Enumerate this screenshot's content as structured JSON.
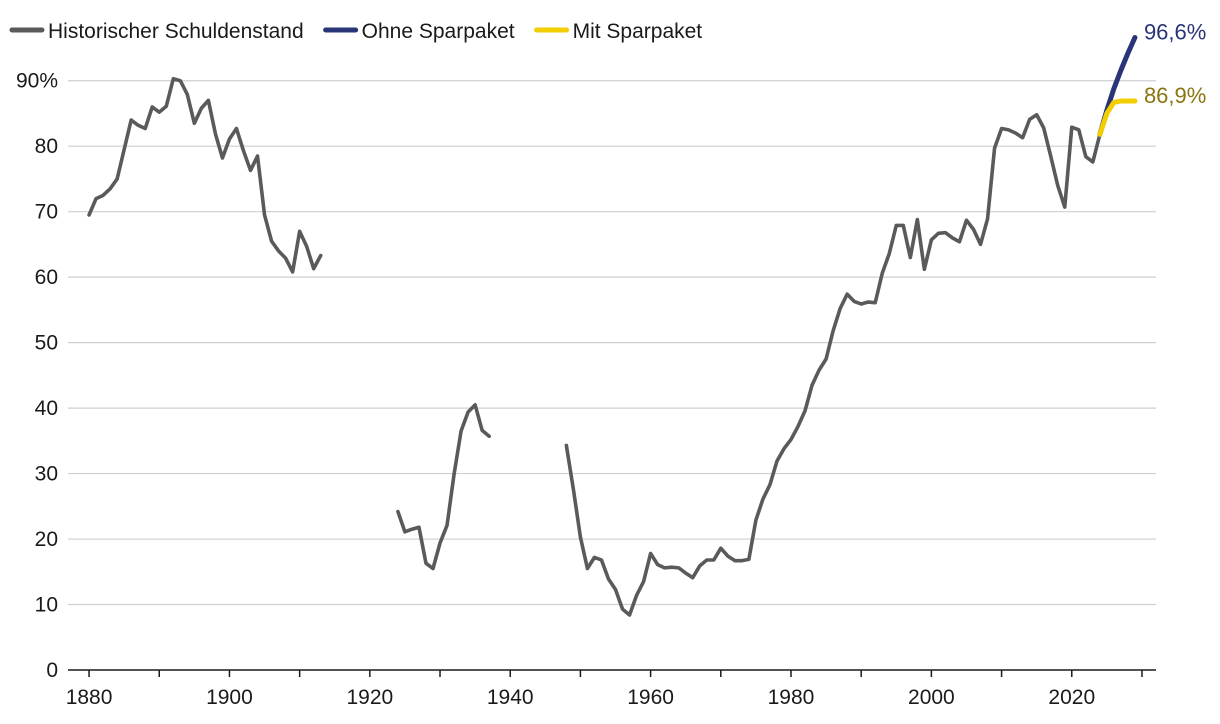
{
  "chart_data": {
    "type": "line",
    "title": "",
    "xlabel": "",
    "ylabel": "",
    "xlim": [
      1877,
      2032
    ],
    "ylim": [
      0,
      95
    ],
    "x_ticks": [
      1880,
      1900,
      1920,
      1940,
      1960,
      1980,
      2000,
      2020
    ],
    "y_ticks": [
      {
        "value": 0,
        "label": "0"
      },
      {
        "value": 10,
        "label": "10"
      },
      {
        "value": 20,
        "label": "20"
      },
      {
        "value": 30,
        "label": "30"
      },
      {
        "value": 40,
        "label": "40"
      },
      {
        "value": 50,
        "label": "50"
      },
      {
        "value": 60,
        "label": "60"
      },
      {
        "value": 70,
        "label": "70"
      },
      {
        "value": 80,
        "label": "80"
      },
      {
        "value": 90,
        "label": "90%"
      }
    ],
    "grid": true,
    "legend_position": "top-left",
    "series": [
      {
        "name": "Historischer Schuldenstand",
        "color": "#5a5a5a",
        "segments": [
          [
            [
              1880,
              69.5
            ],
            [
              1881,
              72
            ],
            [
              1882,
              72.5
            ],
            [
              1883,
              73.5
            ],
            [
              1884,
              75
            ],
            [
              1885,
              79.5
            ],
            [
              1886,
              84
            ],
            [
              1887,
              83.2
            ],
            [
              1888,
              82.7
            ],
            [
              1889,
              86
            ],
            [
              1890,
              85.2
            ],
            [
              1891,
              86.1
            ],
            [
              1892,
              90.3
            ],
            [
              1893,
              90
            ],
            [
              1894,
              87.9
            ],
            [
              1895,
              83.5
            ],
            [
              1896,
              85.8
            ],
            [
              1897,
              87
            ],
            [
              1898,
              81.9
            ],
            [
              1899,
              78.2
            ],
            [
              1900,
              81.1
            ],
            [
              1901,
              82.7
            ],
            [
              1902,
              79.3
            ],
            [
              1903,
              76.3
            ],
            [
              1904,
              78.5
            ],
            [
              1905,
              69.5
            ],
            [
              1906,
              65.5
            ],
            [
              1907,
              64
            ],
            [
              1908,
              62.9
            ],
            [
              1909,
              60.8
            ],
            [
              1910,
              67
            ],
            [
              1911,
              64.7
            ],
            [
              1912,
              61.3
            ],
            [
              1913,
              63.3
            ]
          ],
          [
            [
              1924,
              24.2
            ],
            [
              1925,
              21.1
            ],
            [
              1926,
              21.5
            ],
            [
              1927,
              21.8
            ],
            [
              1928,
              16.3
            ],
            [
              1929,
              15.5
            ],
            [
              1930,
              19.4
            ],
            [
              1931,
              22.1
            ],
            [
              1932,
              29.9
            ],
            [
              1933,
              36.5
            ],
            [
              1934,
              39.4
            ],
            [
              1935,
              40.5
            ],
            [
              1936,
              36.6
            ],
            [
              1937,
              35.7
            ]
          ],
          [
            [
              1948,
              34.3
            ],
            [
              1949,
              27.6
            ],
            [
              1950,
              20.3
            ],
            [
              1951,
              15.5
            ],
            [
              1952,
              17.2
            ],
            [
              1953,
              16.8
            ],
            [
              1954,
              13.9
            ],
            [
              1955,
              12.3
            ],
            [
              1956,
              9.3
            ],
            [
              1957,
              8.4
            ],
            [
              1958,
              11.4
            ],
            [
              1959,
              13.5
            ],
            [
              1960,
              17.8
            ],
            [
              1961,
              16.1
            ],
            [
              1962,
              15.6
            ],
            [
              1963,
              15.7
            ],
            [
              1964,
              15.6
            ],
            [
              1965,
              14.8
            ],
            [
              1966,
              14.1
            ],
            [
              1967,
              15.9
            ],
            [
              1968,
              16.8
            ],
            [
              1969,
              16.8
            ],
            [
              1970,
              18.6
            ],
            [
              1971,
              17.4
            ],
            [
              1972,
              16.7
            ],
            [
              1973,
              16.7
            ],
            [
              1974,
              16.9
            ],
            [
              1975,
              22.9
            ],
            [
              1976,
              26.1
            ],
            [
              1977,
              28.3
            ],
            [
              1978,
              31.9
            ],
            [
              1979,
              33.8
            ],
            [
              1980,
              35.2
            ],
            [
              1981,
              37.2
            ],
            [
              1982,
              39.6
            ],
            [
              1983,
              43.5
            ],
            [
              1984,
              45.8
            ],
            [
              1985,
              47.5
            ],
            [
              1986,
              51.8
            ],
            [
              1987,
              55.2
            ],
            [
              1988,
              57.4
            ],
            [
              1989,
              56.3
            ],
            [
              1990,
              55.9
            ],
            [
              1991,
              56.2
            ],
            [
              1992,
              56.1
            ],
            [
              1993,
              60.6
            ],
            [
              1994,
              63.6
            ],
            [
              1995,
              67.9
            ],
            [
              1996,
              67.9
            ],
            [
              1997,
              63
            ],
            [
              1998,
              68.8
            ],
            [
              1999,
              61.2
            ],
            [
              2000,
              65.7
            ],
            [
              2001,
              66.7
            ],
            [
              2002,
              66.8
            ],
            [
              2003,
              66
            ],
            [
              2004,
              65.4
            ],
            [
              2005,
              68.7
            ],
            [
              2006,
              67.3
            ],
            [
              2007,
              65
            ],
            [
              2008,
              68.9
            ],
            [
              2009,
              79.7
            ],
            [
              2010,
              82.7
            ],
            [
              2011,
              82.5
            ],
            [
              2012,
              82
            ],
            [
              2013,
              81.3
            ],
            [
              2014,
              84.1
            ],
            [
              2015,
              84.8
            ],
            [
              2016,
              82.8
            ],
            [
              2017,
              78.5
            ],
            [
              2018,
              74
            ],
            [
              2019,
              70.7
            ],
            [
              2020,
              82.9
            ],
            [
              2021,
              82.5
            ],
            [
              2022,
              78.4
            ],
            [
              2023,
              77.6
            ],
            [
              2024,
              81.8
            ]
          ]
        ]
      },
      {
        "name": "Ohne Sparpaket",
        "color": "#2a3578",
        "segments": [
          [
            [
              2024,
              81.8
            ],
            [
              2025,
              85.5
            ],
            [
              2026,
              88.8
            ],
            [
              2027,
              91.6
            ],
            [
              2028,
              94.2
            ],
            [
              2029,
              96.6
            ]
          ]
        ],
        "end_label": "96,6%"
      },
      {
        "name": "Mit Sparpaket",
        "color": "#f2cd00",
        "segments": [
          [
            [
              2024,
              81.8
            ],
            [
              2025,
              85
            ],
            [
              2026,
              86.7
            ],
            [
              2027,
              86.9
            ],
            [
              2028,
              86.9
            ],
            [
              2029,
              86.9
            ]
          ]
        ],
        "end_label": "86,9%",
        "end_label_color": "#8a7510"
      }
    ]
  }
}
